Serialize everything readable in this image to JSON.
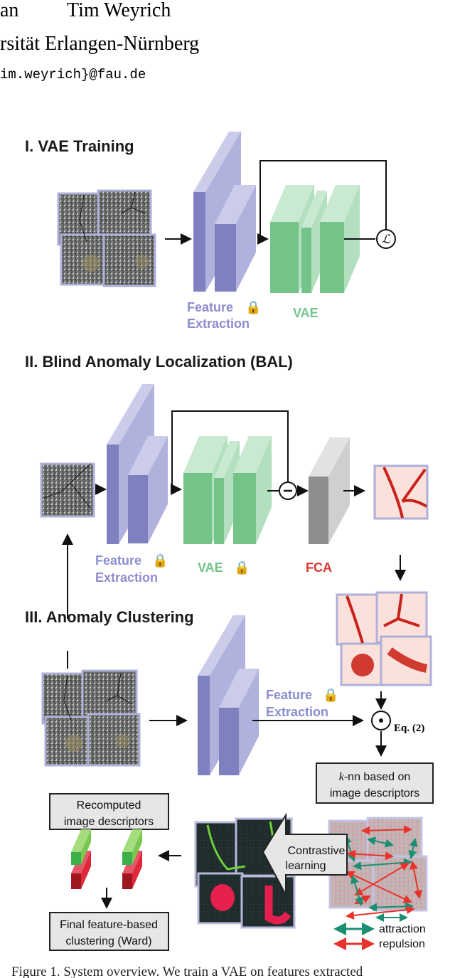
{
  "header": {
    "authors_fragment": "an",
    "author": "Tim Weyrich",
    "affiliation": "rsität Erlangen-Nürnberg",
    "email": "im.weyrich}@fau.de"
  },
  "sections": {
    "vae_training": {
      "title": "I. VAE Training",
      "feature_label_1": "Feature",
      "feature_label_2": "Extraction",
      "vae_label": "VAE",
      "loss_symbol": "ℒ"
    },
    "bal": {
      "title": "II. Blind Anomaly Localization (BAL)",
      "feature_label_1": "Feature",
      "feature_label_2": "Extraction",
      "vae_label": "VAE",
      "fca_label": "FCA"
    },
    "clustering": {
      "title": "III. Anomaly Clustering",
      "feature_label_1": "Feature",
      "feature_label_2": "Extraction",
      "eq_label": "Eq. (2)",
      "knn_box_1": "k-nn based on",
      "knn_box_k": "k",
      "knn_box_1_rest": "-nn based on",
      "knn_box_2": "image descriptors",
      "recomputed_1": "Recomputed",
      "recomputed_2": "image descriptors",
      "contrastive_1": "Contrastive",
      "contrastive_2": "learning",
      "final_1": "Final feature-based",
      "final_2": "clustering (Ward)",
      "legend": [
        {
          "label": "attraction",
          "color": "#1a8f72"
        },
        {
          "label": "repulsion",
          "color": "#e8322a"
        }
      ]
    }
  },
  "colors": {
    "feature_extraction": "#8c8dd0",
    "vae": "#74c48a",
    "fca": "#e0352b",
    "fca_block": "#9a9a9a"
  },
  "caption": "Figure 1. System overview. We train a VAE on features extracted"
}
